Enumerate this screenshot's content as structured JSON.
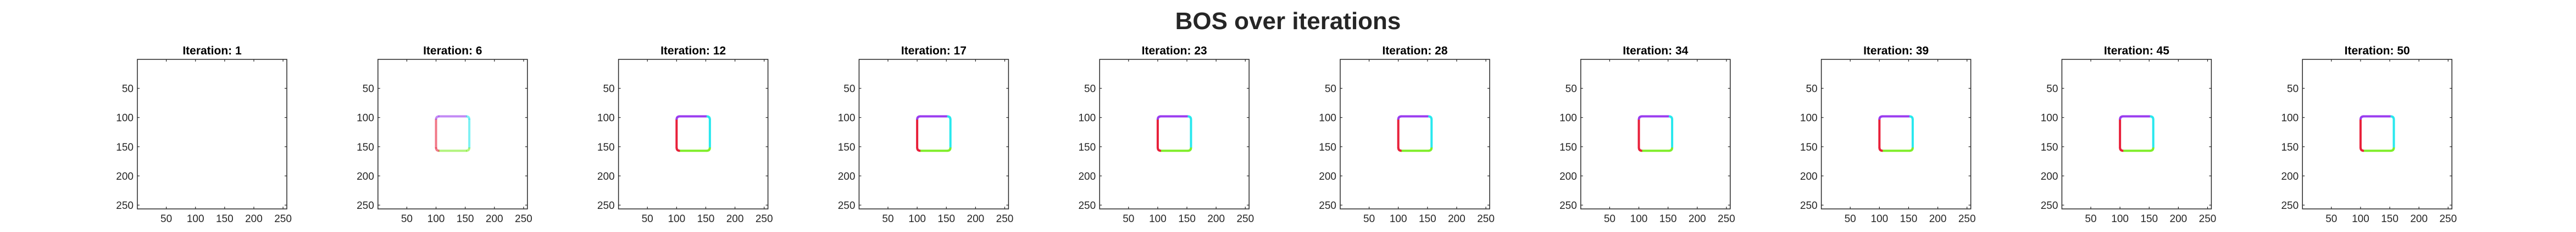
{
  "figure": {
    "title": "BOS over iterations"
  },
  "chart_data": {
    "type": "heatmap",
    "title": "BOS over iterations",
    "xlim": [
      0.5,
      256.5
    ],
    "ylim": [
      0.5,
      256.5
    ],
    "y_reversed": true,
    "xticks": [
      50,
      100,
      150,
      200,
      250
    ],
    "yticks": [
      50,
      100,
      150,
      200,
      250
    ],
    "grid": false,
    "square_outline": {
      "x0": 100,
      "x1": 157,
      "y0": 98,
      "y1": 157,
      "colors": {
        "left": "#e8203a",
        "top": "#9a3cf0",
        "right": "#28e8ee",
        "bottom": "#80ee2a"
      }
    },
    "panels": [
      {
        "title": "Iteration: 1",
        "outline_intensity": 0.0
      },
      {
        "title": "Iteration: 6",
        "outline_intensity": 0.6
      },
      {
        "title": "Iteration: 12",
        "outline_intensity": 1.0
      },
      {
        "title": "Iteration: 17",
        "outline_intensity": 1.0
      },
      {
        "title": "Iteration: 23",
        "outline_intensity": 1.0
      },
      {
        "title": "Iteration: 28",
        "outline_intensity": 1.0
      },
      {
        "title": "Iteration: 34",
        "outline_intensity": 1.0
      },
      {
        "title": "Iteration: 39",
        "outline_intensity": 1.0
      },
      {
        "title": "Iteration: 45",
        "outline_intensity": 1.0
      },
      {
        "title": "Iteration: 50",
        "outline_intensity": 1.0
      }
    ]
  }
}
